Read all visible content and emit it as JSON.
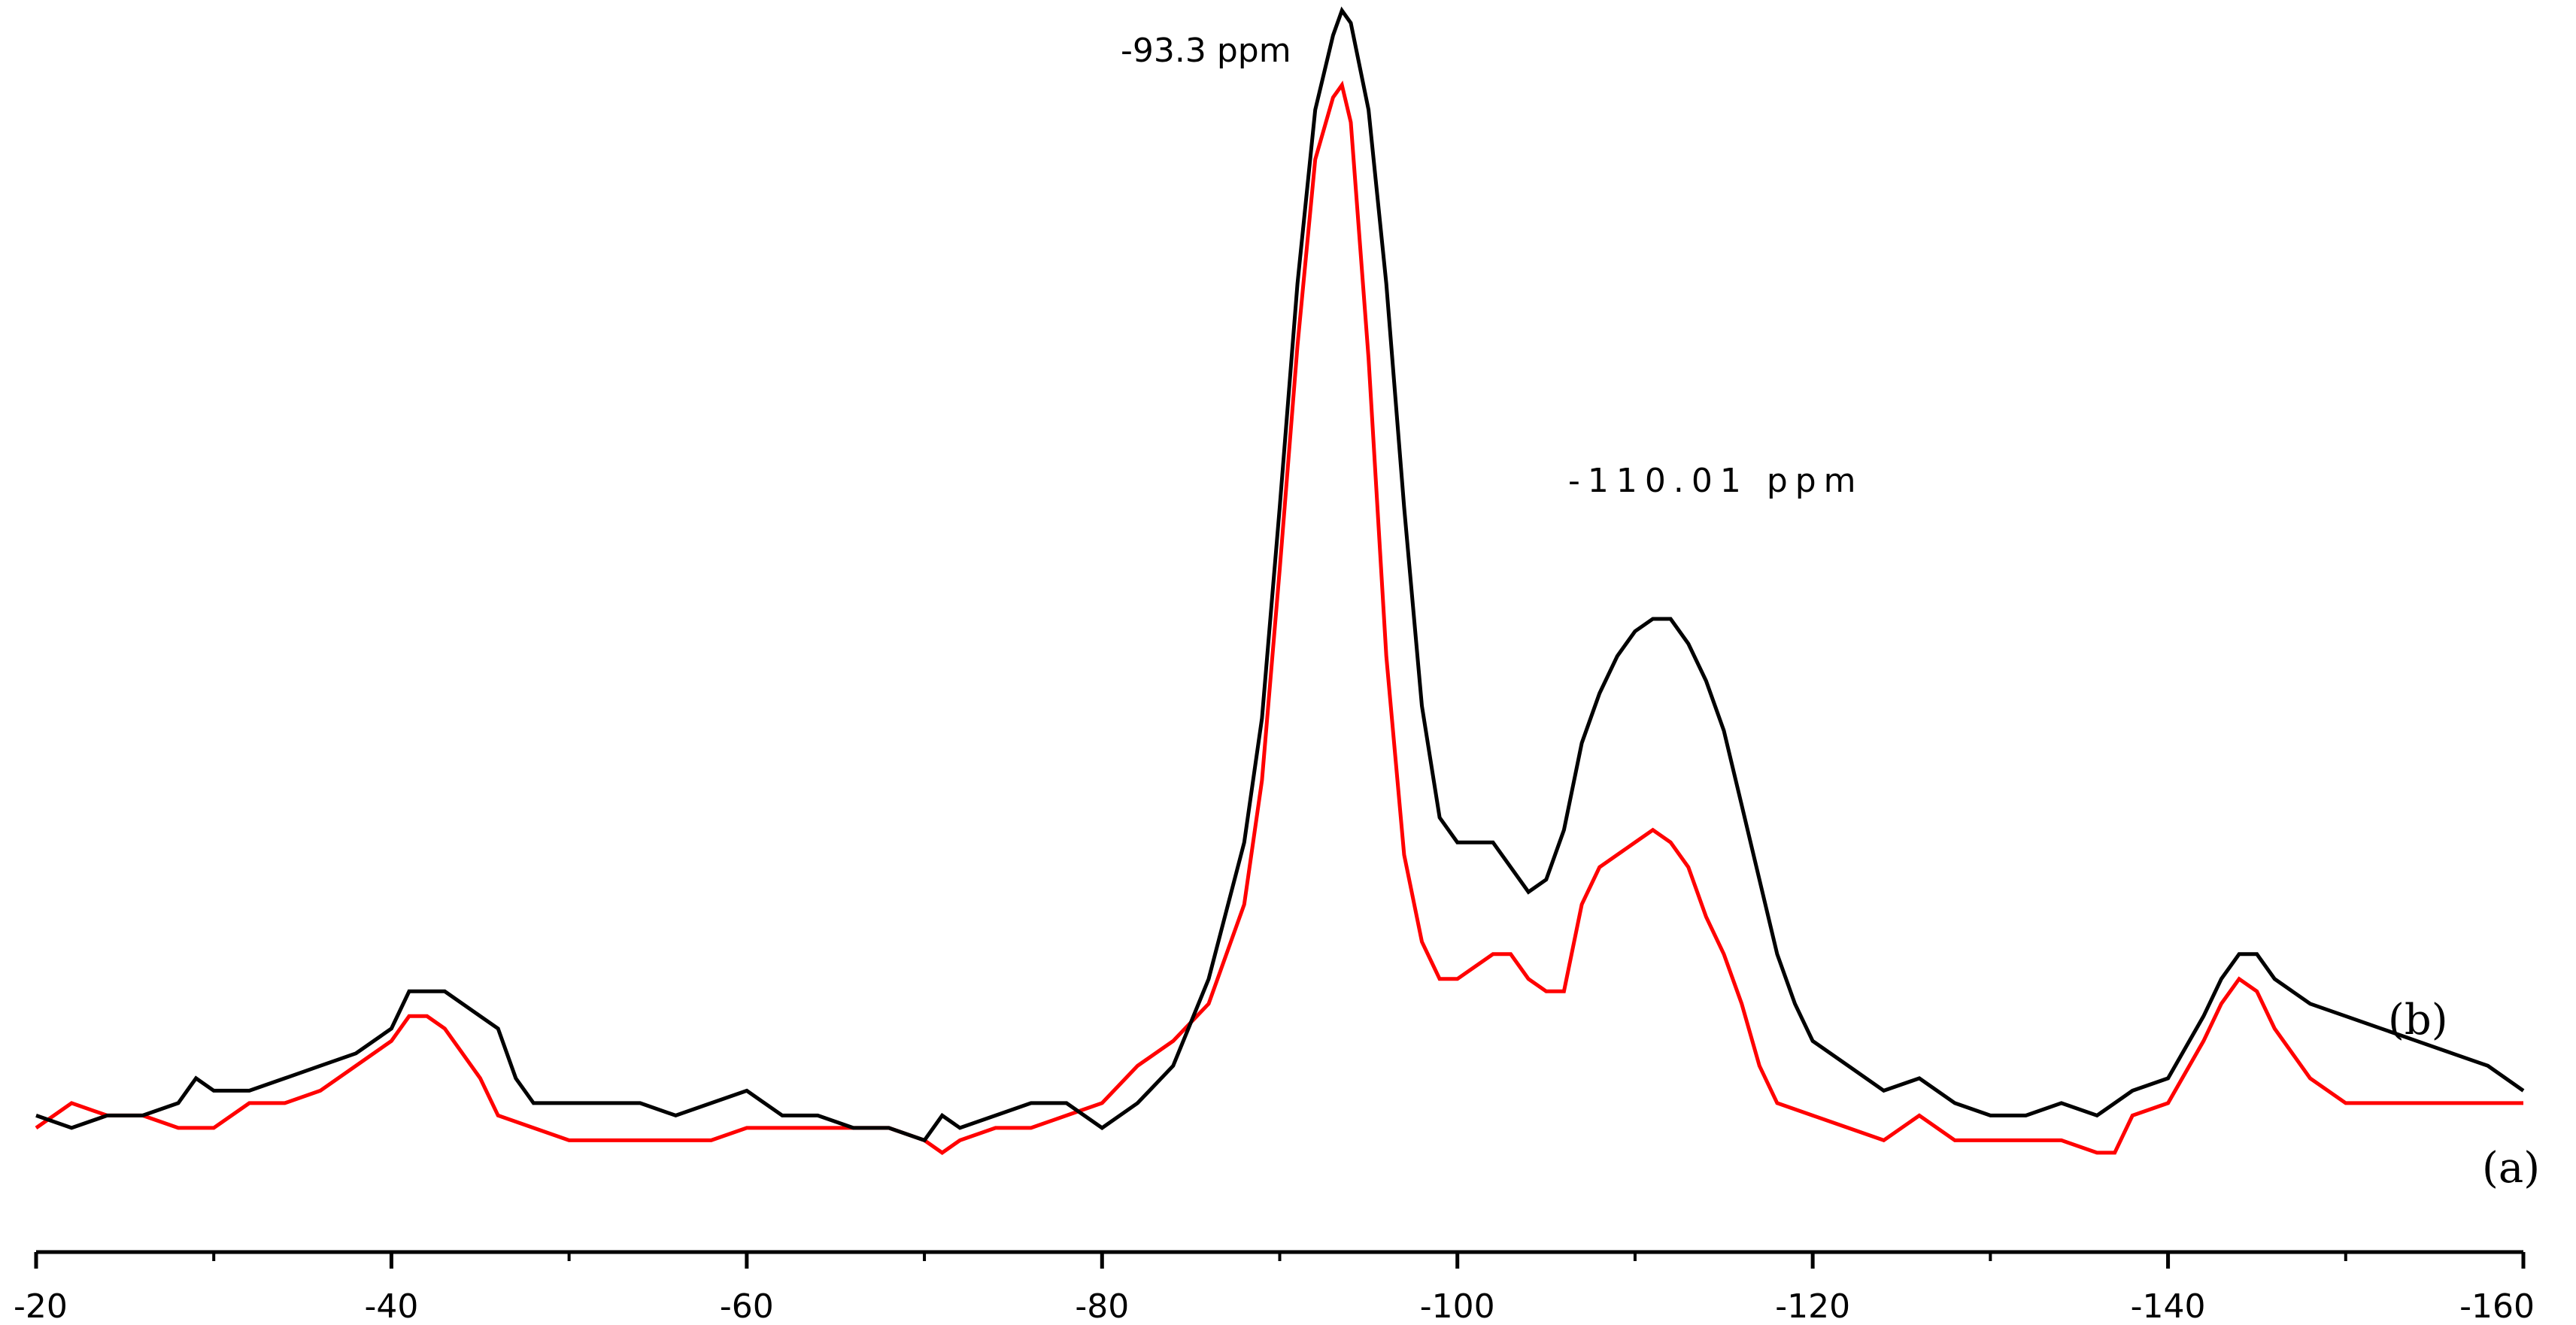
{
  "chart_data": {
    "type": "line",
    "title": "",
    "xlabel": "",
    "ylabel": "",
    "xlim": [
      -20,
      -160
    ],
    "ylim": [
      0,
      1.0
    ],
    "grid": false,
    "x_ticks": [
      {
        "value": -20,
        "label": "-20"
      },
      {
        "value": -40,
        "label": "-40"
      },
      {
        "value": -60,
        "label": "-60"
      },
      {
        "value": -80,
        "label": "-80"
      },
      {
        "value": -100,
        "label": "-100"
      },
      {
        "value": -120,
        "label": "-120"
      },
      {
        "value": -140,
        "label": "-140"
      },
      {
        "value": -160,
        "label": "-160"
      }
    ],
    "annotations": [
      {
        "text": "-93.3 ppm",
        "x": -93.3
      },
      {
        "text": "-110.01 ppm",
        "x": -110.01
      }
    ],
    "series": [
      {
        "label": "(b)",
        "color": "#000000",
        "points": [
          [
            -20,
            0.11
          ],
          [
            -22,
            0.1
          ],
          [
            -24,
            0.11
          ],
          [
            -26,
            0.11
          ],
          [
            -28,
            0.12
          ],
          [
            -29,
            0.14
          ],
          [
            -30,
            0.13
          ],
          [
            -32,
            0.13
          ],
          [
            -34,
            0.14
          ],
          [
            -36,
            0.15
          ],
          [
            -38,
            0.16
          ],
          [
            -40,
            0.18
          ],
          [
            -41,
            0.21
          ],
          [
            -42,
            0.21
          ],
          [
            -43,
            0.21
          ],
          [
            -44,
            0.2
          ],
          [
            -45,
            0.19
          ],
          [
            -46,
            0.18
          ],
          [
            -47,
            0.14
          ],
          [
            -48,
            0.12
          ],
          [
            -50,
            0.12
          ],
          [
            -52,
            0.12
          ],
          [
            -54,
            0.12
          ],
          [
            -56,
            0.11
          ],
          [
            -58,
            0.12
          ],
          [
            -60,
            0.13
          ],
          [
            -61,
            0.12
          ],
          [
            -62,
            0.11
          ],
          [
            -64,
            0.11
          ],
          [
            -66,
            0.1
          ],
          [
            -68,
            0.1
          ],
          [
            -70,
            0.09
          ],
          [
            -71,
            0.11
          ],
          [
            -72,
            0.1
          ],
          [
            -74,
            0.11
          ],
          [
            -76,
            0.12
          ],
          [
            -78,
            0.12
          ],
          [
            -80,
            0.1
          ],
          [
            -82,
            0.12
          ],
          [
            -84,
            0.15
          ],
          [
            -86,
            0.22
          ],
          [
            -88,
            0.33
          ],
          [
            -89,
            0.43
          ],
          [
            -90,
            0.6
          ],
          [
            -91,
            0.78
          ],
          [
            -92,
            0.92
          ],
          [
            -93,
            0.98
          ],
          [
            -93.5,
            1.0
          ],
          [
            -94,
            0.99
          ],
          [
            -95,
            0.92
          ],
          [
            -96,
            0.78
          ],
          [
            -97,
            0.6
          ],
          [
            -98,
            0.44
          ],
          [
            -99,
            0.35
          ],
          [
            -100,
            0.33
          ],
          [
            -101,
            0.33
          ],
          [
            -102,
            0.33
          ],
          [
            -103,
            0.31
          ],
          [
            -104,
            0.29
          ],
          [
            -105,
            0.3
          ],
          [
            -106,
            0.34
          ],
          [
            -107,
            0.41
          ],
          [
            -108,
            0.45
          ],
          [
            -109,
            0.48
          ],
          [
            -110,
            0.5
          ],
          [
            -111,
            0.51
          ],
          [
            -112,
            0.51
          ],
          [
            -113,
            0.49
          ],
          [
            -114,
            0.46
          ],
          [
            -115,
            0.42
          ],
          [
            -116,
            0.36
          ],
          [
            -117,
            0.3
          ],
          [
            -118,
            0.24
          ],
          [
            -119,
            0.2
          ],
          [
            -120,
            0.17
          ],
          [
            -122,
            0.15
          ],
          [
            -124,
            0.13
          ],
          [
            -126,
            0.14
          ],
          [
            -128,
            0.12
          ],
          [
            -130,
            0.11
          ],
          [
            -132,
            0.11
          ],
          [
            -134,
            0.12
          ],
          [
            -136,
            0.11
          ],
          [
            -138,
            0.13
          ],
          [
            -140,
            0.14
          ],
          [
            -142,
            0.19
          ],
          [
            -143,
            0.22
          ],
          [
            -144,
            0.24
          ],
          [
            -145,
            0.24
          ],
          [
            -146,
            0.22
          ],
          [
            -148,
            0.2
          ],
          [
            -150,
            0.19
          ],
          [
            -152,
            0.18
          ],
          [
            -154,
            0.17
          ],
          [
            -156,
            0.16
          ],
          [
            -158,
            0.15
          ],
          [
            -160,
            0.13
          ]
        ]
      },
      {
        "label": "(a)",
        "color": "#ff0000",
        "points": [
          [
            -20,
            0.1
          ],
          [
            -22,
            0.12
          ],
          [
            -24,
            0.11
          ],
          [
            -26,
            0.11
          ],
          [
            -28,
            0.1
          ],
          [
            -30,
            0.1
          ],
          [
            -32,
            0.12
          ],
          [
            -34,
            0.12
          ],
          [
            -36,
            0.13
          ],
          [
            -38,
            0.15
          ],
          [
            -40,
            0.17
          ],
          [
            -41,
            0.19
          ],
          [
            -42,
            0.19
          ],
          [
            -43,
            0.18
          ],
          [
            -44,
            0.16
          ],
          [
            -45,
            0.14
          ],
          [
            -46,
            0.11
          ],
          [
            -48,
            0.1
          ],
          [
            -50,
            0.09
          ],
          [
            -52,
            0.09
          ],
          [
            -54,
            0.09
          ],
          [
            -56,
            0.09
          ],
          [
            -58,
            0.09
          ],
          [
            -60,
            0.1
          ],
          [
            -62,
            0.1
          ],
          [
            -64,
            0.1
          ],
          [
            -66,
            0.1
          ],
          [
            -68,
            0.1
          ],
          [
            -70,
            0.09
          ],
          [
            -71,
            0.08
          ],
          [
            -72,
            0.09
          ],
          [
            -74,
            0.1
          ],
          [
            -76,
            0.1
          ],
          [
            -78,
            0.11
          ],
          [
            -80,
            0.12
          ],
          [
            -82,
            0.15
          ],
          [
            -84,
            0.17
          ],
          [
            -86,
            0.2
          ],
          [
            -88,
            0.28
          ],
          [
            -89,
            0.38
          ],
          [
            -90,
            0.55
          ],
          [
            -91,
            0.73
          ],
          [
            -92,
            0.88
          ],
          [
            -93,
            0.93
          ],
          [
            -93.5,
            0.94
          ],
          [
            -94,
            0.91
          ],
          [
            -95,
            0.72
          ],
          [
            -96,
            0.48
          ],
          [
            -97,
            0.32
          ],
          [
            -98,
            0.25
          ],
          [
            -99,
            0.22
          ],
          [
            -100,
            0.22
          ],
          [
            -101,
            0.23
          ],
          [
            -102,
            0.24
          ],
          [
            -103,
            0.24
          ],
          [
            -104,
            0.22
          ],
          [
            -105,
            0.21
          ],
          [
            -106,
            0.21
          ],
          [
            -107,
            0.28
          ],
          [
            -108,
            0.31
          ],
          [
            -109,
            0.32
          ],
          [
            -110,
            0.33
          ],
          [
            -111,
            0.34
          ],
          [
            -112,
            0.33
          ],
          [
            -113,
            0.31
          ],
          [
            -114,
            0.27
          ],
          [
            -115,
            0.24
          ],
          [
            -116,
            0.2
          ],
          [
            -117,
            0.15
          ],
          [
            -118,
            0.12
          ],
          [
            -120,
            0.11
          ],
          [
            -122,
            0.1
          ],
          [
            -124,
            0.09
          ],
          [
            -126,
            0.11
          ],
          [
            -128,
            0.09
          ],
          [
            -130,
            0.09
          ],
          [
            -132,
            0.09
          ],
          [
            -134,
            0.09
          ],
          [
            -136,
            0.08
          ],
          [
            -137,
            0.08
          ],
          [
            -138,
            0.11
          ],
          [
            -140,
            0.12
          ],
          [
            -142,
            0.17
          ],
          [
            -143,
            0.2
          ],
          [
            -144,
            0.22
          ],
          [
            -145,
            0.21
          ],
          [
            -146,
            0.18
          ],
          [
            -148,
            0.14
          ],
          [
            -150,
            0.12
          ],
          [
            -152,
            0.12
          ],
          [
            -154,
            0.12
          ],
          [
            -156,
            0.12
          ],
          [
            -158,
            0.12
          ],
          [
            -160,
            0.12
          ]
        ]
      }
    ]
  }
}
